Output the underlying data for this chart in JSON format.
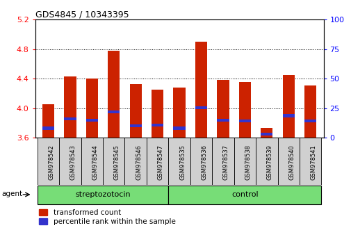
{
  "title": "GDS4845 / 10343395",
  "samples": [
    "GSM978542",
    "GSM978543",
    "GSM978544",
    "GSM978545",
    "GSM978546",
    "GSM978547",
    "GSM978535",
    "GSM978536",
    "GSM978537",
    "GSM978538",
    "GSM978539",
    "GSM978540",
    "GSM978541"
  ],
  "bar_values": [
    4.05,
    4.43,
    4.4,
    4.78,
    4.33,
    4.25,
    4.28,
    4.9,
    4.38,
    4.36,
    3.73,
    4.45,
    4.31
  ],
  "blue_values": [
    3.73,
    3.86,
    3.84,
    3.95,
    3.76,
    3.77,
    3.73,
    4.01,
    3.84,
    3.83,
    3.65,
    3.9,
    3.83
  ],
  "groups": [
    {
      "label": "streptozotocin",
      "indices": [
        0,
        1,
        2,
        3,
        4,
        5
      ]
    },
    {
      "label": "control",
      "indices": [
        6,
        7,
        8,
        9,
        10,
        11,
        12
      ]
    }
  ],
  "ylim": [
    3.6,
    5.2
  ],
  "yticks": [
    3.6,
    4.0,
    4.4,
    4.8,
    5.2
  ],
  "right_ylim": [
    0,
    100
  ],
  "right_yticks": [
    0,
    25,
    50,
    75,
    100
  ],
  "bar_color": "#cc2200",
  "blue_color": "#3333cc",
  "baseline": 3.6,
  "bar_width": 0.55,
  "green_color": "#77dd77",
  "agent_label": "agent",
  "legend": [
    "transformed count",
    "percentile rank within the sample"
  ]
}
